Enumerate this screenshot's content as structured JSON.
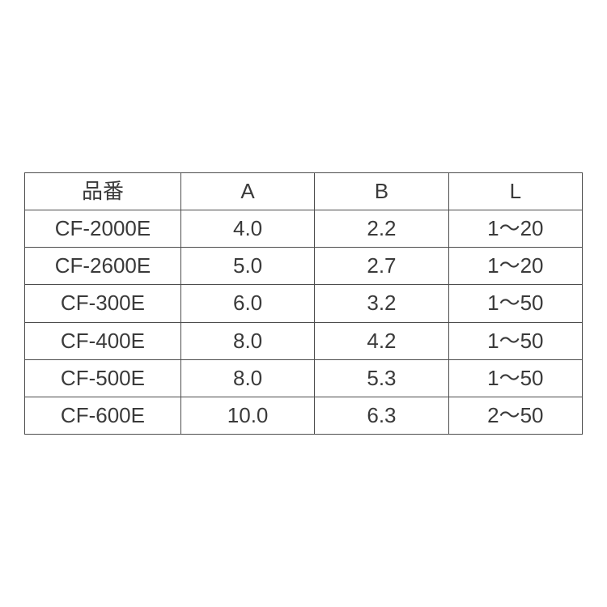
{
  "table": {
    "columns": [
      "品番",
      "A",
      "B",
      "L"
    ],
    "rows": [
      [
        "CF-2000E",
        "4.0",
        "2.2",
        "1～20"
      ],
      [
        "CF-2600E",
        "5.0",
        "2.7",
        "1～20"
      ],
      [
        "CF-300E",
        "6.0",
        "3.2",
        "1～50"
      ],
      [
        "CF-400E",
        "8.0",
        "4.2",
        "1～50"
      ],
      [
        "CF-500E",
        "8.0",
        "5.3",
        "1～50"
      ],
      [
        "CF-600E",
        "10.0",
        "6.3",
        "2～50"
      ]
    ],
    "border_color": "#4d4d4d",
    "text_color": "#3a3a3a",
    "font_size": 26,
    "background_color": "#ffffff"
  }
}
